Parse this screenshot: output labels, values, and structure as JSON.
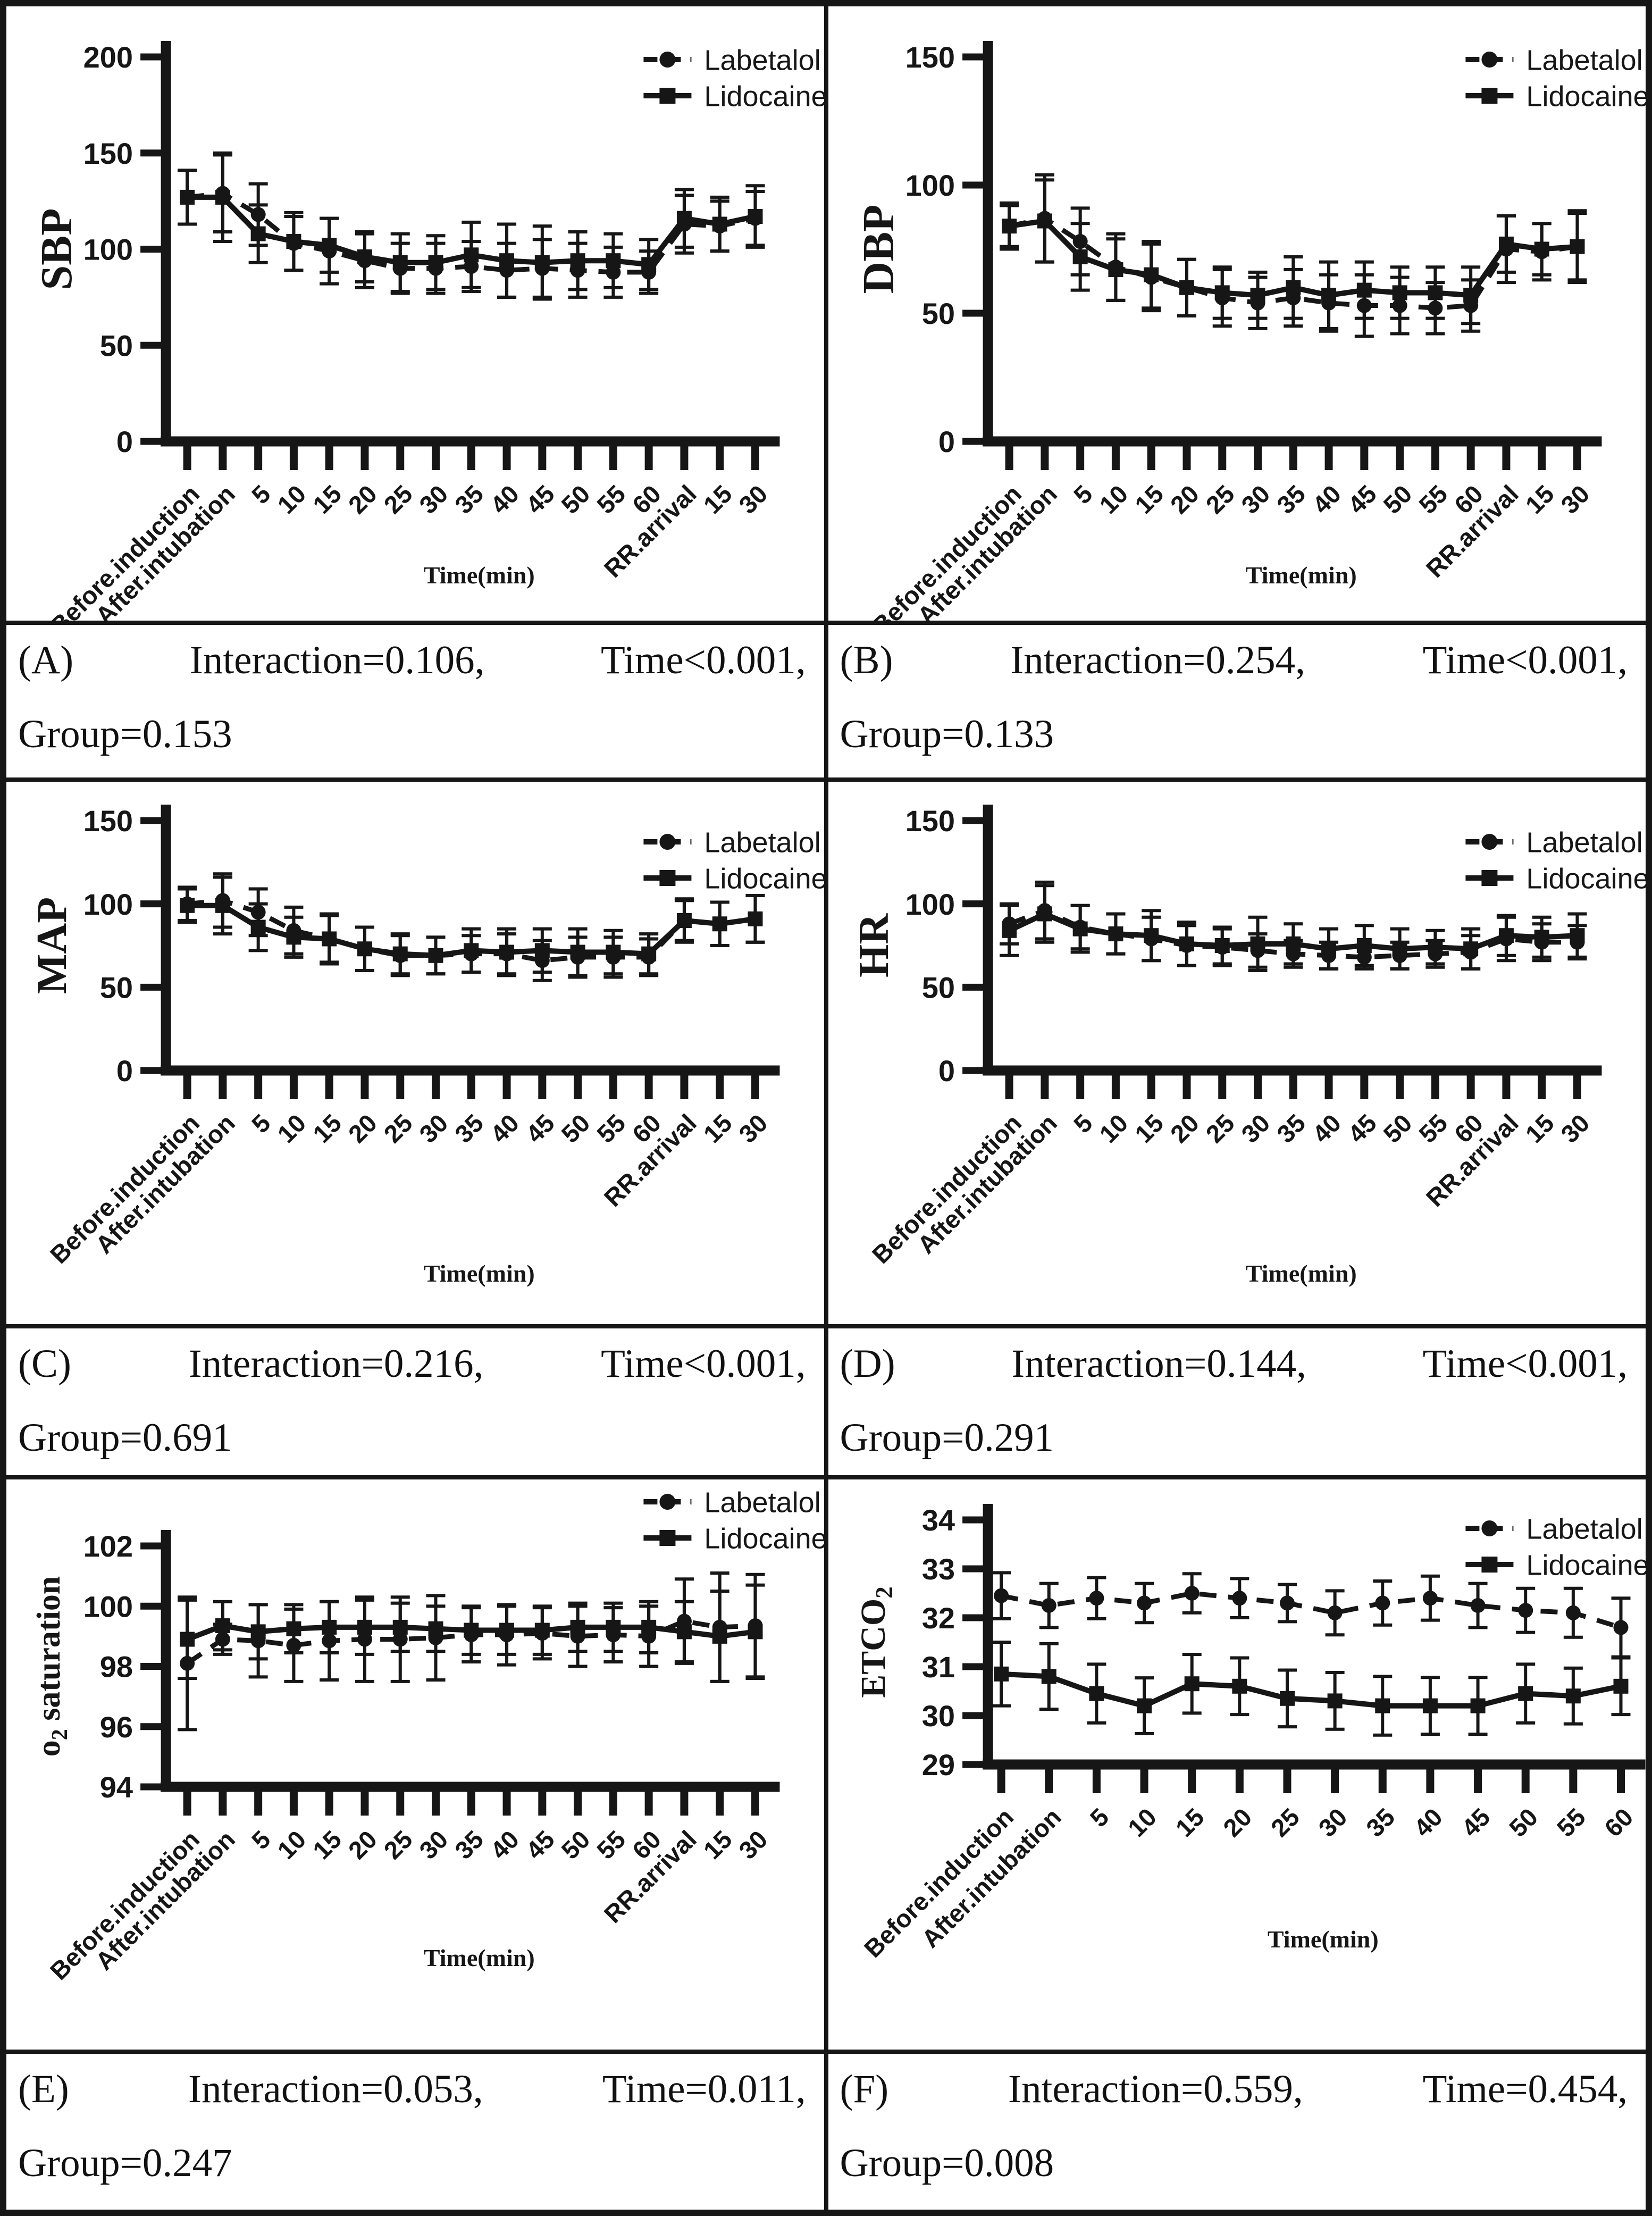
{
  "figure": {
    "ink_color": "#161616",
    "xlabel": "Time(min)",
    "legend_labels": [
      "Labetalol",
      "Lidocaine"
    ]
  },
  "captions": [
    {
      "label": "(A)",
      "seg1": "Interaction=0.106,",
      "seg2": "Time<0.001,",
      "line2": "Group=0.153"
    },
    {
      "label": "(B)",
      "seg1": "Interaction=0.254,",
      "seg2": "Time<0.001,",
      "line2": "Group=0.133"
    },
    {
      "label": "(C)",
      "seg1": "Interaction=0.216,",
      "seg2": "Time<0.001,",
      "line2": "Group=0.691"
    },
    {
      "label": "(D)",
      "seg1": "Interaction=0.144,",
      "seg2": "Time<0.001,",
      "line2": "Group=0.291"
    },
    {
      "label": "(E)",
      "seg1": "Interaction=0.053,",
      "seg2": "Time=0.011,",
      "line2": "Group=0.247"
    },
    {
      "label": "(F)",
      "seg1": "Interaction=0.559,",
      "seg2": "Time=0.454,",
      "line2": "Group=0.008"
    }
  ],
  "chart_data": [
    {
      "id": "A",
      "type": "line",
      "ylabel": "SBP",
      "ylabel_parts": [
        {
          "t": "SBP"
        }
      ],
      "xlabel": "Time(min)",
      "ylim": [
        0,
        200
      ],
      "yticks": [
        0,
        50,
        100,
        150,
        200
      ],
      "grid": false,
      "legend_position": "top-right",
      "categories": [
        "Before.induction",
        "After.intubation",
        "5",
        "10",
        "15",
        "20",
        "25",
        "30",
        "35",
        "40",
        "45",
        "50",
        "55",
        "60",
        "RR.arrival",
        "15",
        "30"
      ],
      "series": [
        {
          "name": "Labetalol",
          "marker": "circle",
          "line": "dashed",
          "values": [
            127,
            129,
            118,
            103,
            99,
            94,
            90,
            90,
            91,
            89,
            90,
            89,
            88,
            88,
            113,
            112,
            116
          ],
          "errors": [
            14,
            20,
            16,
            14,
            17,
            14,
            13,
            13,
            13,
            14,
            15,
            14,
            13,
            11,
            15,
            13,
            14
          ]
        },
        {
          "name": "Lidocaine",
          "marker": "square",
          "line": "solid",
          "values": [
            127,
            127,
            108,
            104,
            102,
            96,
            93,
            93,
            97,
            94,
            93,
            94,
            94,
            92,
            116,
            113,
            117
          ],
          "errors": [
            14,
            23,
            15,
            15,
            14,
            13,
            15,
            14,
            17,
            19,
            19,
            15,
            14,
            13,
            15,
            14,
            16
          ]
        }
      ]
    },
    {
      "id": "B",
      "type": "line",
      "ylabel": "DBP",
      "ylabel_parts": [
        {
          "t": "DBP"
        }
      ],
      "xlabel": "Time(min)",
      "ylim": [
        0,
        150
      ],
      "yticks": [
        0,
        50,
        100,
        150
      ],
      "grid": false,
      "legend_position": "top-right",
      "categories": [
        "Before.induction",
        "After.intubation",
        "5",
        "10",
        "15",
        "20",
        "25",
        "30",
        "35",
        "40",
        "45",
        "50",
        "55",
        "60",
        "RR.arrival",
        "15",
        "30"
      ],
      "series": [
        {
          "name": "Labetalol",
          "marker": "circle",
          "line": "dashed",
          "values": [
            84,
            87,
            78,
            68,
            64,
            60,
            56,
            54,
            56,
            54,
            53,
            53,
            52,
            53,
            75,
            74,
            76
          ],
          "errors": [
            9,
            17,
            13,
            13,
            13,
            11,
            11,
            10,
            11,
            11,
            12,
            11,
            10,
            10,
            13,
            11,
            13
          ]
        },
        {
          "name": "Lidocaine",
          "marker": "square",
          "line": "solid",
          "values": [
            84,
            86,
            72,
            67,
            65,
            60,
            58,
            57,
            60,
            57,
            59,
            58,
            58,
            57,
            77,
            75,
            76
          ],
          "errors": [
            8,
            16,
            13,
            12,
            13,
            11,
            10,
            9,
            12,
            13,
            11,
            10,
            10,
            11,
            11,
            10,
            14
          ]
        }
      ]
    },
    {
      "id": "C",
      "type": "line",
      "ylabel": "MAP",
      "ylabel_parts": [
        {
          "t": "MAP"
        }
      ],
      "xlabel": "Time(min)",
      "ylim": [
        0,
        150
      ],
      "yticks": [
        0,
        50,
        100,
        150
      ],
      "grid": false,
      "legend_position": "top-right",
      "categories": [
        "Before.induction",
        "After.intubation",
        "5",
        "10",
        "15",
        "20",
        "25",
        "30",
        "35",
        "40",
        "45",
        "50",
        "55",
        "60",
        "RR.arrival",
        "15",
        "30"
      ],
      "series": [
        {
          "name": "Labetalol",
          "marker": "circle",
          "line": "dashed",
          "values": [
            100,
            102,
            95,
            84,
            79,
            73,
            69,
            69,
            70,
            70,
            66,
            68,
            68,
            68,
            90,
            88,
            91
          ],
          "errors": [
            10,
            16,
            14,
            14,
            15,
            13,
            12,
            11,
            11,
            12,
            12,
            12,
            12,
            11,
            12,
            13,
            14
          ]
        },
        {
          "name": "Lidocaine",
          "marker": "square",
          "line": "solid",
          "values": [
            99,
            99,
            86,
            80,
            79,
            73,
            70,
            69,
            72,
            71,
            72,
            71,
            71,
            70,
            90,
            88,
            91
          ],
          "errors": [
            10,
            17,
            14,
            12,
            14,
            13,
            12,
            11,
            13,
            14,
            13,
            14,
            13,
            12,
            13,
            13,
            14
          ]
        }
      ]
    },
    {
      "id": "D",
      "type": "line",
      "ylabel": "HR",
      "ylabel_parts": [
        {
          "t": "HR"
        }
      ],
      "xlabel": "Time(min)",
      "ylim": [
        0,
        150
      ],
      "yticks": [
        0,
        50,
        100,
        150
      ],
      "grid": false,
      "legend_position": "top-right",
      "categories": [
        "Before.induction",
        "After.intubation",
        "5",
        "10",
        "15",
        "20",
        "25",
        "30",
        "35",
        "40",
        "45",
        "50",
        "55",
        "60",
        "RR.arrival",
        "15",
        "30"
      ],
      "series": [
        {
          "name": "Labetalol",
          "marker": "circle",
          "line": "dashed",
          "values": [
            88,
            96,
            86,
            82,
            79,
            75,
            74,
            72,
            70,
            69,
            68,
            69,
            70,
            71,
            79,
            77,
            77
          ],
          "errors": [
            12,
            17,
            13,
            12,
            13,
            12,
            11,
            10,
            8,
            8,
            7,
            8,
            8,
            10,
            13,
            11,
            10
          ]
        },
        {
          "name": "Lidocaine",
          "marker": "square",
          "line": "solid",
          "values": [
            84,
            94,
            85,
            82,
            81,
            76,
            75,
            76,
            76,
            73,
            75,
            73,
            74,
            73,
            81,
            80,
            81
          ],
          "errors": [
            15,
            17,
            14,
            12,
            15,
            13,
            11,
            16,
            12,
            12,
            12,
            12,
            10,
            12,
            12,
            12,
            13
          ]
        }
      ]
    },
    {
      "id": "E",
      "type": "line",
      "ylabel": "o2 saturation",
      "ylabel_parts": [
        {
          "t": "o"
        },
        {
          "t": "2",
          "sub": true
        },
        {
          "t": " saturation"
        }
      ],
      "xlabel": "Time(min)",
      "ylim": [
        94,
        102
      ],
      "yticks": [
        94,
        96,
        98,
        100,
        102
      ],
      "grid": false,
      "legend_position": "top-right",
      "categories": [
        "Before.induction",
        "After.intubation",
        "5",
        "10",
        "15",
        "20",
        "25",
        "30",
        "35",
        "40",
        "45",
        "50",
        "55",
        "60",
        "RR.arrival",
        "15",
        "30"
      ],
      "series": [
        {
          "name": "Labetalol",
          "marker": "circle",
          "line": "dashed",
          "values": [
            98.1,
            98.9,
            98.85,
            98.7,
            98.85,
            98.9,
            98.9,
            98.95,
            99.05,
            99.05,
            99.1,
            99.0,
            99.05,
            99.0,
            99.5,
            99.3,
            99.35
          ],
          "errors": [
            2.2,
            0.5,
            1.2,
            1.2,
            1.3,
            1.4,
            1.4,
            1.4,
            0.9,
            1.0,
            0.85,
            1.0,
            0.9,
            1.0,
            1.4,
            1.8,
            1.7
          ]
        },
        {
          "name": "Lidocaine",
          "marker": "square",
          "line": "solid",
          "values": [
            98.9,
            99.35,
            99.15,
            99.25,
            99.3,
            99.3,
            99.3,
            99.25,
            99.2,
            99.2,
            99.2,
            99.3,
            99.3,
            99.3,
            99.15,
            99.0,
            99.15
          ],
          "errors": [
            1.3,
            0.8,
            0.9,
            0.8,
            0.85,
            0.9,
            0.8,
            0.75,
            0.8,
            0.8,
            0.8,
            0.8,
            0.8,
            0.85,
            1.0,
            1.5,
            1.55
          ]
        }
      ]
    },
    {
      "id": "F",
      "type": "line",
      "ylabel": "ETCO2",
      "ylabel_parts": [
        {
          "t": "ETCO"
        },
        {
          "t": "2",
          "sub": true
        }
      ],
      "xlabel": "Time(min)",
      "ylim": [
        29,
        34
      ],
      "yticks": [
        29,
        30,
        31,
        32,
        33,
        34
      ],
      "grid": false,
      "legend_position": "top-right",
      "categories": [
        "Before.induction",
        "After.intubation",
        "5",
        "10",
        "15",
        "20",
        "25",
        "30",
        "35",
        "40",
        "45",
        "50",
        "55",
        "60"
      ],
      "series": [
        {
          "name": "Labetalol",
          "marker": "circle",
          "line": "dashed",
          "values": [
            32.45,
            32.25,
            32.4,
            32.3,
            32.5,
            32.4,
            32.3,
            32.1,
            32.3,
            32.4,
            32.25,
            32.15,
            32.1,
            31.8
          ],
          "errors": [
            0.47,
            0.45,
            0.42,
            0.4,
            0.4,
            0.4,
            0.38,
            0.45,
            0.45,
            0.45,
            0.45,
            0.45,
            0.5,
            0.6
          ]
        },
        {
          "name": "Lidocaine",
          "marker": "square",
          "line": "solid",
          "values": [
            30.85,
            30.8,
            30.45,
            30.2,
            30.65,
            30.6,
            30.35,
            30.3,
            30.2,
            30.2,
            30.2,
            30.45,
            30.4,
            30.6
          ],
          "errors": [
            0.65,
            0.67,
            0.6,
            0.57,
            0.6,
            0.58,
            0.58,
            0.58,
            0.6,
            0.58,
            0.58,
            0.6,
            0.57,
            0.58
          ]
        }
      ]
    }
  ]
}
